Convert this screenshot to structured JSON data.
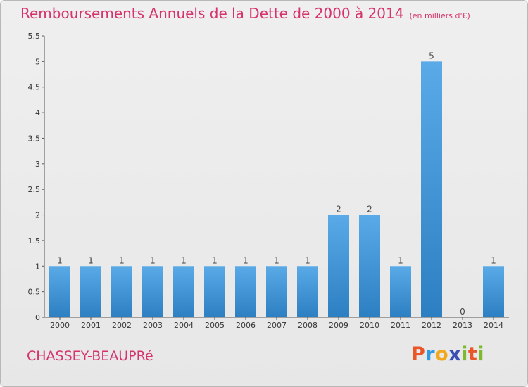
{
  "chart_data": {
    "type": "bar",
    "title": "Remboursements Annuels de la Dette de 2000 à 2014",
    "unit": "(en milliers d'€)",
    "categories": [
      "2000",
      "2001",
      "2002",
      "2003",
      "2004",
      "2005",
      "2006",
      "2007",
      "2008",
      "2009",
      "2010",
      "2011",
      "2012",
      "2013",
      "2014"
    ],
    "values": [
      1,
      1,
      1,
      1,
      1,
      1,
      1,
      1,
      1,
      2,
      2,
      1,
      5,
      0,
      1
    ],
    "ylim": [
      0,
      5.5
    ],
    "yticks": [
      "0",
      "0.5",
      "1",
      "1.5",
      "2",
      "2.5",
      "3",
      "3.5",
      "4",
      "4.5",
      "5",
      "5.5"
    ],
    "grid": false,
    "colors": {
      "bar_light": "#5aaae8",
      "bar_dark": "#2c7fc1",
      "title": "#d6336c"
    }
  },
  "footer": {
    "commune": "CHASSEY-BEAUPRé",
    "logo": {
      "letters": [
        "P",
        "r",
        "o",
        "x",
        "i",
        "t",
        "i"
      ],
      "colors": [
        "#e8562a",
        "#2f9be0",
        "#f2a81d",
        "#3a4fb5",
        "#7dbb2d",
        "#e8562a",
        "#7dbb2d"
      ]
    }
  }
}
